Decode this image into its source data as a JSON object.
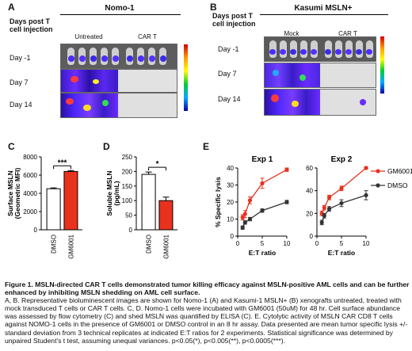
{
  "panelA": {
    "letter": "A",
    "header": "Days post T cell injection",
    "cell_line": "Nomo-1",
    "groups": [
      "Untreated",
      "CAR T"
    ],
    "days": [
      "Day -1",
      "Day 7",
      "Day 14"
    ]
  },
  "panelB": {
    "letter": "B",
    "header": "Days post T cell injection",
    "cell_line": "Kasumi MSLN+",
    "groups": [
      "Mock",
      "CAR T"
    ],
    "days": [
      "Day -1",
      "Day 7",
      "Day 14"
    ]
  },
  "panelC": {
    "letter": "C"
  },
  "panelD": {
    "letter": "D"
  },
  "panelE": {
    "letter": "E"
  },
  "chart_data": [
    {
      "type": "bar",
      "panel": "C",
      "ylabel": "Surface MSLN (Geometric MFI)",
      "categories": [
        "DMSO",
        "GM6001"
      ],
      "values": [
        4500,
        6400
      ],
      "errors": [
        100,
        100
      ],
      "colors": [
        "#ffffff",
        "#e8321e"
      ],
      "ylim": [
        0,
        8000
      ],
      "yticks": [
        "0",
        "2000",
        "4000",
        "6000",
        "8000"
      ],
      "significance": "***"
    },
    {
      "type": "bar",
      "panel": "D",
      "ylabel": "Soluble MSLN (pg/mL)",
      "categories": [
        "DMSO",
        "GM6001"
      ],
      "values": [
        190,
        100
      ],
      "errors": [
        8,
        12
      ],
      "colors": [
        "#ffffff",
        "#e8321e"
      ],
      "ylim": [
        0,
        250
      ],
      "yticks": [
        "0",
        "50",
        "100",
        "150",
        "200",
        "250"
      ],
      "significance": "*"
    },
    {
      "type": "line",
      "panel": "E",
      "title": "Exp 1",
      "xlabel": "E:T ratio",
      "ylabel": "% Specific lysis",
      "xlim": [
        0,
        10
      ],
      "ylim": [
        0,
        40
      ],
      "xticks": [
        "0",
        "5",
        "10"
      ],
      "yticks": [
        "0",
        "10",
        "20",
        "30",
        "40"
      ],
      "x": [
        1,
        1.5,
        2.5,
        5,
        10
      ],
      "series": [
        {
          "name": "GM6001",
          "color": "#e8321e",
          "values": [
            11,
            13,
            21,
            31,
            39
          ],
          "errors": [
            1.5,
            2,
            2,
            3,
            1
          ]
        },
        {
          "name": "DMSO",
          "color": "#333333",
          "values": [
            5,
            8,
            10,
            15,
            20
          ],
          "errors": [
            1,
            1,
            1,
            1,
            1
          ]
        }
      ]
    },
    {
      "type": "line",
      "panel": "E",
      "title": "Exp 2",
      "xlabel": "E:T ratio",
      "xlim": [
        0,
        10
      ],
      "ylim": [
        0,
        60
      ],
      "xticks": [
        "0",
        "5",
        "10"
      ],
      "yticks": [
        "0",
        "20",
        "40",
        "60"
      ],
      "x": [
        1,
        1.5,
        2.5,
        5,
        10
      ],
      "series": [
        {
          "name": "GM6001",
          "color": "#e8321e",
          "values": [
            20,
            25,
            34,
            42,
            60
          ],
          "errors": [
            2,
            2,
            2,
            2,
            1
          ]
        },
        {
          "name": "DMSO",
          "color": "#333333",
          "values": [
            12,
            18,
            24,
            29,
            36
          ],
          "errors": [
            2,
            2,
            2,
            3,
            4
          ]
        }
      ]
    }
  ],
  "legendE": [
    "GM6001",
    "DMSO"
  ],
  "caption": {
    "title": "Figure 1. MSLN-directed CAR T cells demonstrated tumor killing efficacy against MSLN-positive AML cells and can be further enhanced by inhibiting MSLN shedding on AML cell surface.",
    "body": "A, B. Representative bioluminescent images are shown for Nomo-1 (A) and Kasumi-1 MSLN+ (B) xenografts untreated, treated with mock transduced T cells or CAR T cells. C, D. Nomo-1 cells were incubated with GM6001 (50uM) for 48 hr. Cell surface abundance was assessed by flow cytometry (C) and shed MSLN was quantified by ELISA (C). E. Cytolytic activity of MSLN CAR CD8 T cells against NOMO-1 cells in the presence of GM6001 or DMSO control in an 8 hr assay. Data presented are mean tumor specific lysis +/- standard deviation from 3 technical replicates at indicated E:T ratios for 2 experiments. Statistical significance was determined by unpaired Student's t test, assuming unequal variances.  p<0.05(*), p<0.005(**), p<0.0005(***)."
  }
}
